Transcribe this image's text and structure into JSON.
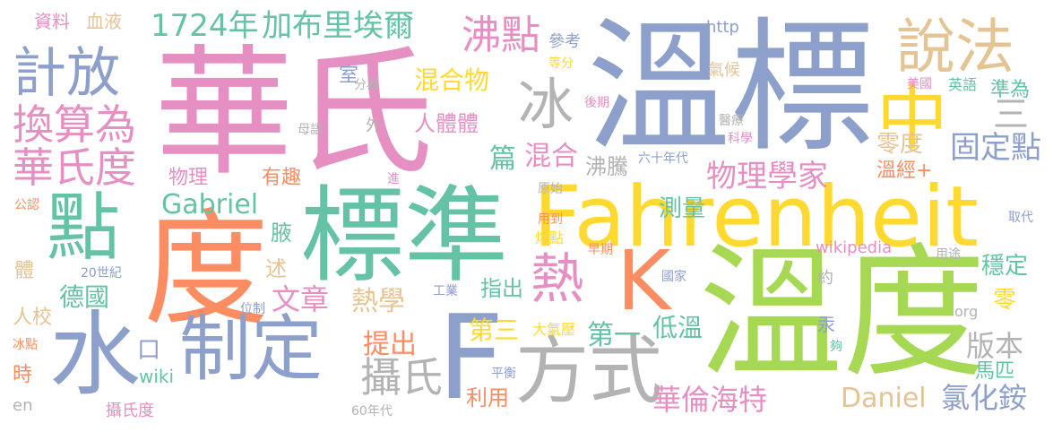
{
  "palette": {
    "pink": "#e68fc3",
    "blue": "#8d9fcb",
    "green": "#66c2a4",
    "orange": "#fc8d62",
    "lime": "#a6d854",
    "yellow": "#ffd92f",
    "tan": "#e5c494",
    "gray": "#b3b3b3"
  },
  "words": [
    {
      "text": "華氏",
      "color": "pink"
    },
    {
      "text": "溫標",
      "color": "blue"
    },
    {
      "text": "溫度",
      "color": "lime"
    },
    {
      "text": "Fahrenheit",
      "color": "yellow"
    },
    {
      "text": "標準",
      "color": "green"
    },
    {
      "text": "度",
      "color": "orange"
    },
    {
      "text": "水",
      "color": "blue"
    },
    {
      "text": "F",
      "color": "blue"
    },
    {
      "text": "點",
      "color": "green"
    },
    {
      "text": "K",
      "color": "orange"
    },
    {
      "text": "中",
      "color": "yellow"
    },
    {
      "text": "方式",
      "color": "gray"
    },
    {
      "text": "制定",
      "color": "blue"
    },
    {
      "text": "說法",
      "color": "tan"
    },
    {
      "text": "熱",
      "color": "pink"
    },
    {
      "text": "冰",
      "color": "gray"
    },
    {
      "text": "計放",
      "color": "blue"
    },
    {
      "text": "換算為",
      "color": "pink"
    },
    {
      "text": "華氏度",
      "color": "pink"
    },
    {
      "text": "1724年",
      "color": "green"
    },
    {
      "text": "加布里埃爾",
      "color": "green"
    },
    {
      "text": "沸點",
      "color": "pink"
    },
    {
      "text": "Gabriel",
      "color": "green"
    },
    {
      "text": "攝氏",
      "color": "gray"
    },
    {
      "text": "Daniel",
      "color": "tan"
    },
    {
      "text": "氯化銨",
      "color": "blue"
    },
    {
      "text": "華倫海特",
      "color": "pink"
    },
    {
      "text": "物理學家",
      "color": "pink"
    },
    {
      "text": "固定點",
      "color": "blue"
    },
    {
      "text": "文章",
      "color": "pink"
    },
    {
      "text": "熱學",
      "color": "tan"
    },
    {
      "text": "德國",
      "color": "green"
    },
    {
      "text": "提出",
      "color": "orange"
    },
    {
      "text": "版本",
      "color": "gray"
    },
    {
      "text": "混合物",
      "color": "yellow"
    },
    {
      "text": "篇",
      "color": "green"
    },
    {
      "text": "混合",
      "color": "pink"
    },
    {
      "text": "測量",
      "color": "green"
    },
    {
      "text": "第三",
      "color": "yellow"
    },
    {
      "text": "第一",
      "color": "green"
    },
    {
      "text": "低溫",
      "color": "green"
    },
    {
      "text": "人體體",
      "color": "pink"
    },
    {
      "text": "沸騰",
      "color": "gray"
    },
    {
      "text": "指出",
      "color": "green"
    },
    {
      "text": "利用",
      "color": "orange"
    },
    {
      "text": "馬匹",
      "color": "green"
    },
    {
      "text": "零度",
      "color": "tan"
    },
    {
      "text": "溫經+",
      "color": "orange"
    },
    {
      "text": "準為",
      "color": "green"
    },
    {
      "text": "穩定",
      "color": "green"
    },
    {
      "text": "零",
      "color": "yellow"
    },
    {
      "text": "三",
      "color": "gray"
    },
    {
      "text": "物理",
      "color": "pink"
    },
    {
      "text": "有趣",
      "color": "orange"
    },
    {
      "text": "述",
      "color": "tan"
    },
    {
      "text": "腋",
      "color": "green"
    },
    {
      "text": "人校",
      "color": "tan"
    },
    {
      "text": "口",
      "color": "blue"
    },
    {
      "text": "wiki",
      "color": "green"
    },
    {
      "text": "時",
      "color": "orange"
    },
    {
      "text": "en",
      "color": "gray"
    },
    {
      "text": "攝氏度",
      "color": "pink"
    },
    {
      "text": "60年代",
      "color": "gray"
    },
    {
      "text": "體",
      "color": "tan"
    },
    {
      "text": "20世紀",
      "color": "blue"
    },
    {
      "text": "位制",
      "color": "blue"
    },
    {
      "text": "冰點",
      "color": "orange"
    },
    {
      "text": "公認",
      "color": "orange"
    },
    {
      "text": "進",
      "color": "pink"
    },
    {
      "text": "外",
      "color": "gray"
    },
    {
      "text": "母語",
      "color": "gray"
    },
    {
      "text": "室",
      "color": "blue"
    },
    {
      "text": "分為",
      "color": "gray"
    },
    {
      "text": "參考",
      "color": "blue"
    },
    {
      "text": "等分",
      "color": "yellow"
    },
    {
      "text": "http",
      "color": "blue"
    },
    {
      "text": "氣候",
      "color": "tan"
    },
    {
      "text": "後期",
      "color": "pink"
    },
    {
      "text": "六十年代",
      "color": "blue"
    },
    {
      "text": "科學",
      "color": "pink"
    },
    {
      "text": "醫療",
      "color": "gray"
    },
    {
      "text": "美國",
      "color": "pink"
    },
    {
      "text": "英語",
      "color": "green"
    },
    {
      "text": "資料",
      "color": "pink"
    },
    {
      "text": "血液",
      "color": "tan"
    },
    {
      "text": "原始",
      "color": "gray"
    },
    {
      "text": "用到",
      "color": "orange"
    },
    {
      "text": "熔點",
      "color": "yellow"
    },
    {
      "text": "早期",
      "color": "orange"
    },
    {
      "text": "工業",
      "color": "blue"
    },
    {
      "text": "大氣壓",
      "color": "yellow"
    },
    {
      "text": "wikipedia",
      "color": "pink"
    },
    {
      "text": "國家",
      "color": "blue"
    },
    {
      "text": "用途",
      "color": "gray"
    },
    {
      "text": "約",
      "color": "gray"
    },
    {
      "text": "org",
      "color": "gray"
    },
    {
      "text": "汞",
      "color": "blue"
    },
    {
      "text": "夠",
      "color": "green"
    },
    {
      "text": "平衡",
      "color": "blue"
    },
    {
      "text": "取代",
      "color": "blue"
    }
  ]
}
